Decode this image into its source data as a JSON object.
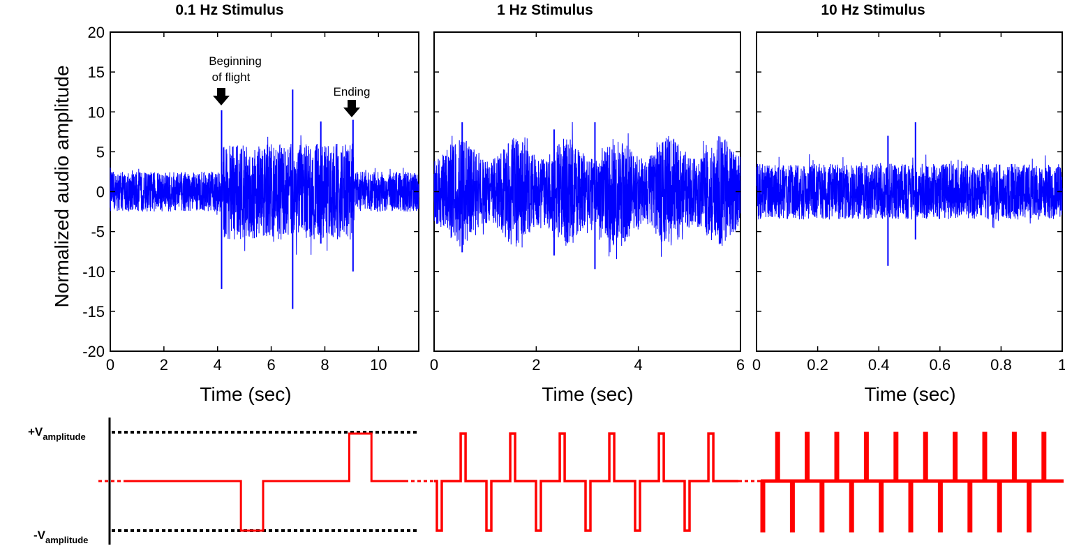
{
  "chart_data": [
    {
      "type": "line",
      "title": "0.1 Hz Stimulus",
      "xlabel": "Time (sec)",
      "ylabel": "Normalized audio amplitude",
      "xlim": [
        0,
        11.5
      ],
      "ylim": [
        -20,
        20
      ],
      "xticks": [
        "0",
        "2",
        "4",
        "6",
        "8",
        "10"
      ],
      "yticks": [
        "20",
        "15",
        "10",
        "5",
        "0",
        "-5",
        "-10",
        "-15",
        "-20"
      ],
      "series_color": "#0000ff",
      "envelope_segments": [
        {
          "t_start": 0,
          "t_end": 4.2,
          "upper": 2.5,
          "lower": -2.5
        },
        {
          "t_start": 4.2,
          "t_end": 9.1,
          "upper": 6,
          "lower": -6.5
        },
        {
          "t_start": 9.1,
          "t_end": 11.5,
          "upper": 2.5,
          "lower": -2.5
        }
      ],
      "spikes": [
        {
          "t": 4.15,
          "hi": 10.2,
          "lo": -12.2
        },
        {
          "t": 6.8,
          "hi": 12.8,
          "lo": -14.7
        },
        {
          "t": 9.05,
          "hi": 9.0,
          "lo": -10.0
        },
        {
          "t": 7.85,
          "hi": 8.8,
          "lo": -6.5
        }
      ],
      "annotations": [
        {
          "text_lines": [
            "Beginning",
            "of flight"
          ],
          "x": 4.15,
          "y": 10.2
        },
        {
          "text_lines": [
            "Ending"
          ],
          "x": 9.05,
          "y": 9.0
        }
      ]
    },
    {
      "type": "line",
      "title": "1 Hz Stimulus",
      "xlabel": "Time (sec)",
      "xlim": [
        0,
        6
      ],
      "ylim": [
        -20,
        20
      ],
      "xticks": [
        "0",
        "2",
        "4",
        "6"
      ],
      "series_color": "#0000ff",
      "burst_centers": [
        0.5,
        1.6,
        2.6,
        3.6,
        4.6,
        5.6
      ],
      "burst_amplitude": 7,
      "base_amplitude": 4,
      "spikes": [
        {
          "t": 0.55,
          "hi": 8.7,
          "lo": -7.6
        },
        {
          "t": 2.35,
          "hi": 7.8,
          "lo": -8.0
        },
        {
          "t": 3.15,
          "hi": 8.7,
          "lo": -9.7
        }
      ]
    },
    {
      "type": "line",
      "title": "10 Hz Stimulus",
      "xlabel": "Time (sec)",
      "xlim": [
        0,
        1
      ],
      "ylim": [
        -20,
        20
      ],
      "xticks": [
        "0",
        "0.2",
        "0.4",
        "0.6",
        "0.8",
        "1"
      ],
      "series_color": "#0000ff",
      "base_amplitude": 3.5,
      "spikes": [
        {
          "t": 0.52,
          "hi": 8.7,
          "lo": -6.0
        },
        {
          "t": 0.43,
          "hi": 7.0,
          "lo": -9.3
        }
      ]
    }
  ],
  "stimulus": {
    "plus_label_main": "+V",
    "plus_label_sub": "amplitude",
    "minus_label_main": "-V",
    "minus_label_sub": "amplitude",
    "waveform_color": "#ff0000",
    "dotted_color": "#000000",
    "panel1": {
      "neg_pulse": [
        0.41,
        0.49
      ],
      "pos_pulse": [
        0.8,
        0.88
      ]
    },
    "panel2_pulse_count": 6,
    "panel3_pulse_count": 10
  }
}
